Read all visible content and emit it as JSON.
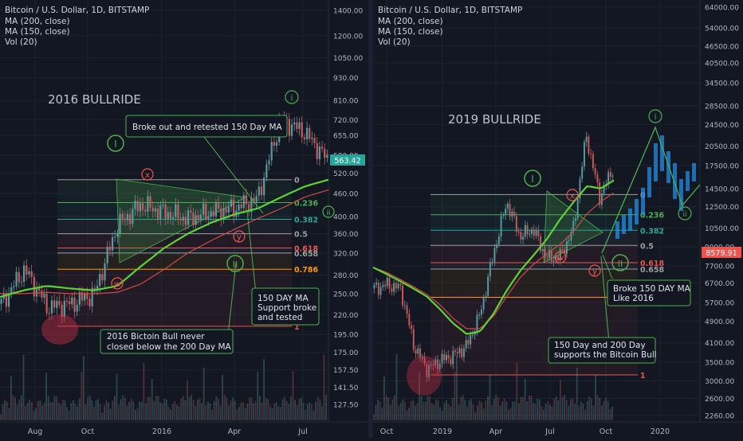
{
  "colors": {
    "background": "#131722",
    "grid": "#1e2230",
    "axis_text": "#b2b5be",
    "ma150": "#5fd135",
    "ma200": "#d04a4a",
    "annotation": "#4caf50",
    "bull": "#5b9aa0",
    "bear": "#c85a5a",
    "fib_0": "#9e9e9e",
    "fib_236": "#4caf50",
    "fib_382": "#26a69a",
    "fib_5": "#9e9e9e",
    "fib_618": "#ef5350",
    "fib_658": "#9e9e9e",
    "fib_786": "#ff9800",
    "fib_1": "#ef5350",
    "price_tag": "#26a69a",
    "price_tag_red": "#ef5350"
  },
  "chart_data": [
    {
      "type": "line",
      "header": {
        "title": "Bitcoin / U.S. Dollar, 1D, BITSTAMP",
        "indicators": [
          "MA (200, close)",
          "MA (150, close)",
          "Vol (20)"
        ]
      },
      "big_label": "2016 BULLRIDE",
      "x_ticks": [
        "Aug",
        "Oct",
        "2016",
        "Apr",
        "Jul"
      ],
      "y_ticks": [
        "1400.00",
        "1200.00",
        "1050.00",
        "930.00",
        "810.00",
        "720.00",
        "655.00",
        "580.00",
        "520.00",
        "460.00",
        "400.00",
        "360.00",
        "320.00",
        "280.00",
        "250.00",
        "220.00",
        "195.00",
        "175.00",
        "157.50",
        "141.50",
        "127.50"
      ],
      "y_scale": "log",
      "current_price": "563.42",
      "fib_levels": [
        {
          "label": "0",
          "price": 500
        },
        {
          "label": "0.236",
          "price": 435
        },
        {
          "label": "0.382",
          "price": 393
        },
        {
          "label": "0.5",
          "price": 360
        },
        {
          "label": "0.618",
          "price": 330
        },
        {
          "label": "0.658",
          "price": 320
        },
        {
          "label": "0.786",
          "price": 290
        },
        {
          "label": "1",
          "price": 205
        }
      ],
      "price_series": {
        "name": "BTCUSD",
        "x": [
          "Jun 2015",
          "Jul 2015",
          "Aug 2015",
          "Sep 2015",
          "Oct 2015",
          "Nov 2015",
          "Dec 2015",
          "Jan 2016",
          "Feb 2016",
          "Mar 2016",
          "Apr 2016",
          "May 2016",
          "Jun 2016",
          "Jul 2016",
          "Aug 2016"
        ],
        "y": [
          235,
          290,
          230,
          235,
          250,
          380,
          430,
          410,
          395,
          410,
          420,
          445,
          720,
          670,
          565
        ]
      },
      "ma150": {
        "name": "MA (150, close)",
        "y": [
          245,
          255,
          262,
          258,
          255,
          262,
          295,
          330,
          360,
          385,
          405,
          420,
          450,
          480,
          500
        ]
      },
      "ma200": {
        "name": "MA (200, close)",
        "y": [
          250,
          250,
          252,
          250,
          250,
          252,
          265,
          290,
          320,
          345,
          370,
          395,
          420,
          450,
          470
        ]
      },
      "annotations": {
        "wave_i_big": "I",
        "wave_ii_big": "II",
        "wave_i_small": "i",
        "wave_ii_small": "ii",
        "wave_x": "x",
        "wave_w": "w",
        "wave_y": "y",
        "callout_breakout": "Broke out and retested 150 Day MA",
        "callout_support": "150 DAY MA\nSupport broke\nand tested",
        "callout_bull": "2016 Bictoin Bull never\nclosed below the 200 Day MA"
      }
    },
    {
      "type": "line",
      "header": {
        "title": "Bitcoin / U.S. Dollar, 1D, BITSTAMP",
        "indicators": [
          "MA (200, close)",
          "MA (150, close)",
          "Vol (20)"
        ]
      },
      "big_label": "2019 BULLRIDE",
      "x_ticks": [
        "Oct",
        "2019",
        "Apr",
        "Jul",
        "Oct",
        "2020"
      ],
      "y_ticks": [
        "64000.00",
        "54000.00",
        "46500.00",
        "40500.00",
        "34500.00",
        "28500.00",
        "24500.00",
        "20500.00",
        "17500.00",
        "14500.00",
        "12500.00",
        "10500.00",
        "9000.00",
        "7700.00",
        "6700.00",
        "5700.00",
        "4900.00",
        "4100.00",
        "3500.00",
        "3000.00",
        "2600.00",
        "2260.00"
      ],
      "y_scale": "log",
      "current_price": "8579.91",
      "fib_levels": [
        {
          "label": "0",
          "price": 13800
        },
        {
          "label": "0.236",
          "price": 11700
        },
        {
          "label": "0.382",
          "price": 10300
        },
        {
          "label": "0.5",
          "price": 9100
        },
        {
          "label": "0.618",
          "price": 7900
        },
        {
          "label": "0.658",
          "price": 7500
        },
        {
          "label": "0.786",
          "price": 5950
        },
        {
          "label": "1",
          "price": 3150
        }
      ],
      "price_series": {
        "name": "BTCUSD",
        "x": [
          "Aug 2018",
          "Sep 2018",
          "Oct 2018",
          "Nov 2018",
          "Dec 2018",
          "Jan 2019",
          "Feb 2019",
          "Mar 2019",
          "Apr 2019",
          "May 2019",
          "Jun 2019",
          "Jul 2019",
          "Aug 2019",
          "Sep 2019",
          "Oct 2019",
          "Nov 2019",
          "Dec 2019",
          "Jan 2020",
          "Feb 2020"
        ],
        "y": [
          6400,
          6600,
          6400,
          4000,
          3300,
          3550,
          3700,
          4000,
          5200,
          8500,
          13000,
          9800,
          10400,
          8200,
          8300,
          10300,
          22500,
          13500,
          17000
        ]
      },
      "ma150": {
        "name": "MA (150, close)",
        "y": [
          7600,
          7200,
          6800,
          6400,
          6000,
          5400,
          4800,
          4400,
          4500,
          5200,
          6300,
          7400,
          8400,
          9600,
          11300,
          13000,
          14800,
          14500,
          15500
        ]
      },
      "ma200": {
        "name": "MA (200, close)",
        "y": [
          7600,
          7300,
          6900,
          6500,
          6100,
          5600,
          5000,
          4600,
          4600,
          5100,
          6000,
          7000,
          7800,
          8500,
          9200,
          10200,
          11800,
          13000,
          14000
        ]
      },
      "annotations": {
        "wave_i_big": "I",
        "wave_ii_big": "II",
        "wave_i_small": "i",
        "wave_ii_small": "ii",
        "wave_x": "x",
        "wave_w": "w",
        "wave_y": "y",
        "callout_ma": "Broke 150 DAY MA\nLike 2016",
        "callout_support": "150 Day and 200 Day\nsupports the Bitcoin Bull"
      }
    }
  ]
}
